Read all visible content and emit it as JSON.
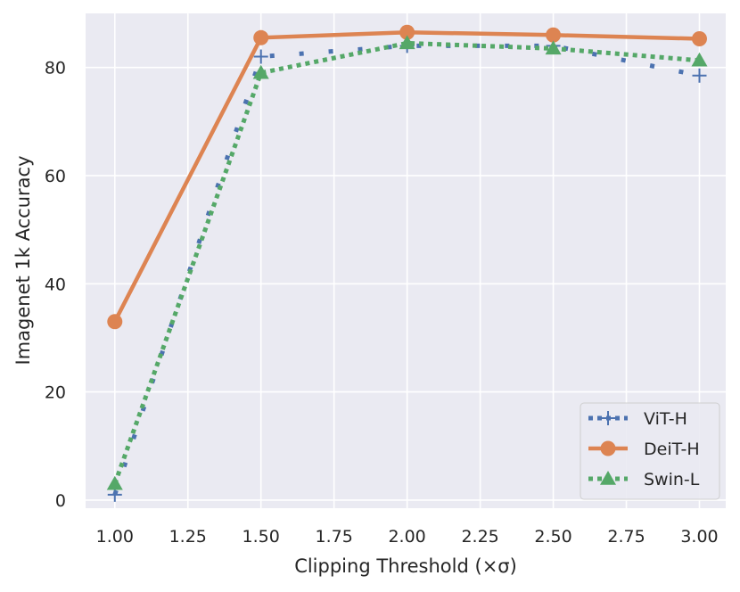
{
  "chart_data": {
    "type": "line",
    "xlabel": "Clipping Threshold (×σ)",
    "ylabel": "Imagenet 1k Accuracy",
    "xlim": [
      0.9,
      3.09
    ],
    "ylim": [
      -1.5,
      90
    ],
    "x_ticks": [
      "1.00",
      "1.25",
      "1.50",
      "1.75",
      "2.00",
      "2.25",
      "2.50",
      "2.75",
      "3.00"
    ],
    "y_ticks": [
      "0",
      "20",
      "40",
      "60",
      "80"
    ],
    "grid": true,
    "legend_position": "lower-right",
    "x": [
      1.0,
      1.5,
      2.0,
      2.5,
      3.0
    ],
    "series": [
      {
        "name": "ViT-H",
        "values": [
          1.0,
          82.0,
          84.0,
          84.0,
          78.5
        ],
        "color": "#4c72b0",
        "marker": "plus",
        "linestyle": "dotted"
      },
      {
        "name": "DeiT-H",
        "values": [
          33.0,
          85.5,
          86.5,
          86.0,
          85.3
        ],
        "color": "#dd8452",
        "marker": "circle",
        "linestyle": "solid"
      },
      {
        "name": "Swin-L",
        "values": [
          3.0,
          79.0,
          84.5,
          83.5,
          81.3
        ],
        "color": "#55a868",
        "marker": "triangle",
        "linestyle": "dotted"
      }
    ]
  }
}
